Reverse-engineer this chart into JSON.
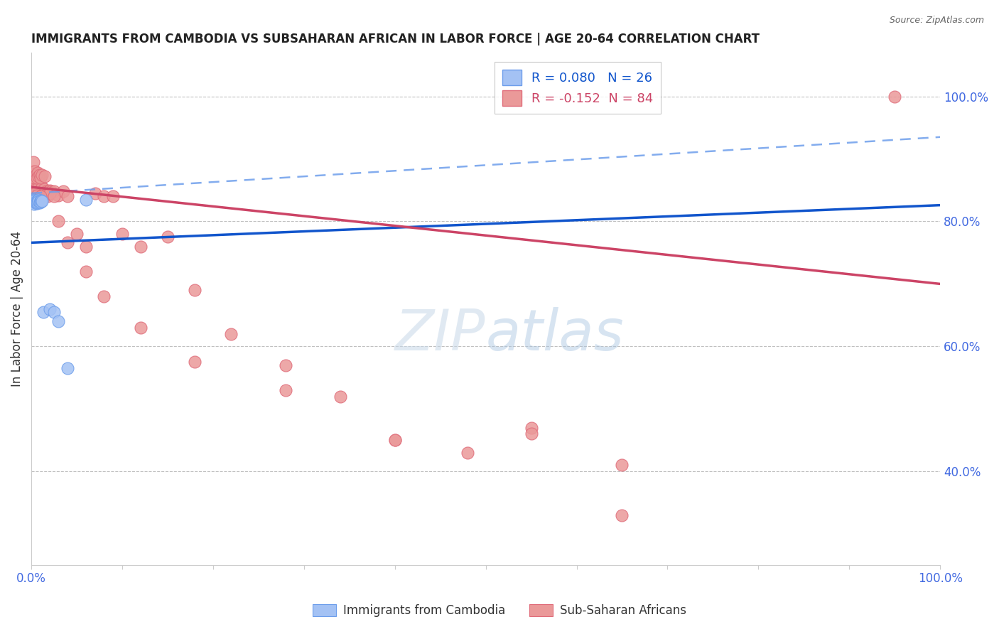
{
  "title": "IMMIGRANTS FROM CAMBODIA VS SUBSAHARAN AFRICAN IN LABOR FORCE | AGE 20-64 CORRELATION CHART",
  "source": "Source: ZipAtlas.com",
  "ylabel": "In Labor Force | Age 20-64",
  "right_yticks": [
    "40.0%",
    "60.0%",
    "80.0%",
    "100.0%"
  ],
  "right_ytick_vals": [
    0.4,
    0.6,
    0.8,
    1.0
  ],
  "xlim": [
    0.0,
    1.0
  ],
  "ylim": [
    0.25,
    1.07
  ],
  "legend_r1": "R = 0.080",
  "legend_n1": "N = 26",
  "legend_r2": "R = -0.152",
  "legend_n2": "N = 84",
  "blue_scatter_color": "#a4c2f4",
  "blue_scatter_edge": "#6d9eeb",
  "pink_scatter_color": "#ea9999",
  "pink_scatter_edge": "#e06c7a",
  "trend_blue_color": "#1155cc",
  "trend_pink_color": "#cc4466",
  "dashed_blue_color": "#6d9eeb",
  "grid_color": "#c0c0c0",
  "title_color": "#222222",
  "source_color": "#666666",
  "axis_tick_color": "#4169e1",
  "ylabel_color": "#333333",
  "watermark_color": "#d0e8f8",
  "cambodia_x": [
    0.001,
    0.002,
    0.002,
    0.003,
    0.003,
    0.004,
    0.004,
    0.005,
    0.005,
    0.006,
    0.006,
    0.007,
    0.007,
    0.008,
    0.008,
    0.009,
    0.01,
    0.01,
    0.011,
    0.012,
    0.013,
    0.02,
    0.025,
    0.03,
    0.04,
    0.06
  ],
  "cambodia_y": [
    0.832,
    0.83,
    0.835,
    0.828,
    0.833,
    0.831,
    0.834,
    0.83,
    0.832,
    0.829,
    0.831,
    0.833,
    0.83,
    0.835,
    0.832,
    0.83,
    0.833,
    0.831,
    0.834,
    0.832,
    0.655,
    0.66,
    0.655,
    0.64,
    0.565,
    0.835
  ],
  "subsaharan_x": [
    0.001,
    0.001,
    0.002,
    0.002,
    0.003,
    0.003,
    0.004,
    0.004,
    0.005,
    0.005,
    0.006,
    0.006,
    0.007,
    0.007,
    0.008,
    0.008,
    0.009,
    0.009,
    0.01,
    0.01,
    0.011,
    0.011,
    0.012,
    0.012,
    0.013,
    0.014,
    0.015,
    0.015,
    0.016,
    0.017,
    0.018,
    0.019,
    0.02,
    0.022,
    0.025,
    0.03,
    0.035,
    0.04,
    0.05,
    0.06,
    0.07,
    0.08,
    0.09,
    0.1,
    0.12,
    0.15,
    0.18,
    0.22,
    0.28,
    0.34,
    0.4,
    0.48,
    0.55,
    0.65,
    0.95,
    0.001,
    0.002,
    0.003,
    0.004,
    0.005,
    0.006,
    0.007,
    0.008,
    0.009,
    0.01,
    0.012,
    0.015,
    0.02,
    0.025,
    0.03,
    0.04,
    0.06,
    0.08,
    0.12,
    0.18,
    0.28,
    0.4,
    0.55,
    0.65,
    0.002,
    0.003,
    0.004,
    0.005,
    0.006,
    0.01
  ],
  "subsaharan_y": [
    0.855,
    0.84,
    0.86,
    0.85,
    0.845,
    0.855,
    0.85,
    0.84,
    0.85,
    0.845,
    0.855,
    0.845,
    0.85,
    0.84,
    0.855,
    0.845,
    0.85,
    0.84,
    0.85,
    0.842,
    0.848,
    0.84,
    0.855,
    0.845,
    0.848,
    0.852,
    0.845,
    0.84,
    0.848,
    0.844,
    0.84,
    0.848,
    0.85,
    0.848,
    0.848,
    0.842,
    0.848,
    0.84,
    0.78,
    0.76,
    0.845,
    0.84,
    0.84,
    0.78,
    0.76,
    0.775,
    0.69,
    0.62,
    0.57,
    0.52,
    0.45,
    0.43,
    0.47,
    0.41,
    1.0,
    0.88,
    0.895,
    0.87,
    0.88,
    0.875,
    0.87,
    0.878,
    0.872,
    0.875,
    0.87,
    0.875,
    0.872,
    0.845,
    0.84,
    0.8,
    0.766,
    0.72,
    0.68,
    0.63,
    0.575,
    0.53,
    0.45,
    0.46,
    0.33,
    0.84,
    0.84,
    0.845,
    0.838,
    0.842,
    0.84
  ],
  "blue_trend_x0": 0.0,
  "blue_trend_y0": 0.766,
  "blue_trend_x1": 1.0,
  "blue_trend_y1": 0.826,
  "pink_trend_x0": 0.0,
  "pink_trend_y0": 0.855,
  "pink_trend_x1": 1.0,
  "pink_trend_y1": 0.7,
  "dash_trend_x0": 0.0,
  "dash_trend_y0": 0.845,
  "dash_trend_x1": 1.0,
  "dash_trend_y1": 0.935
}
